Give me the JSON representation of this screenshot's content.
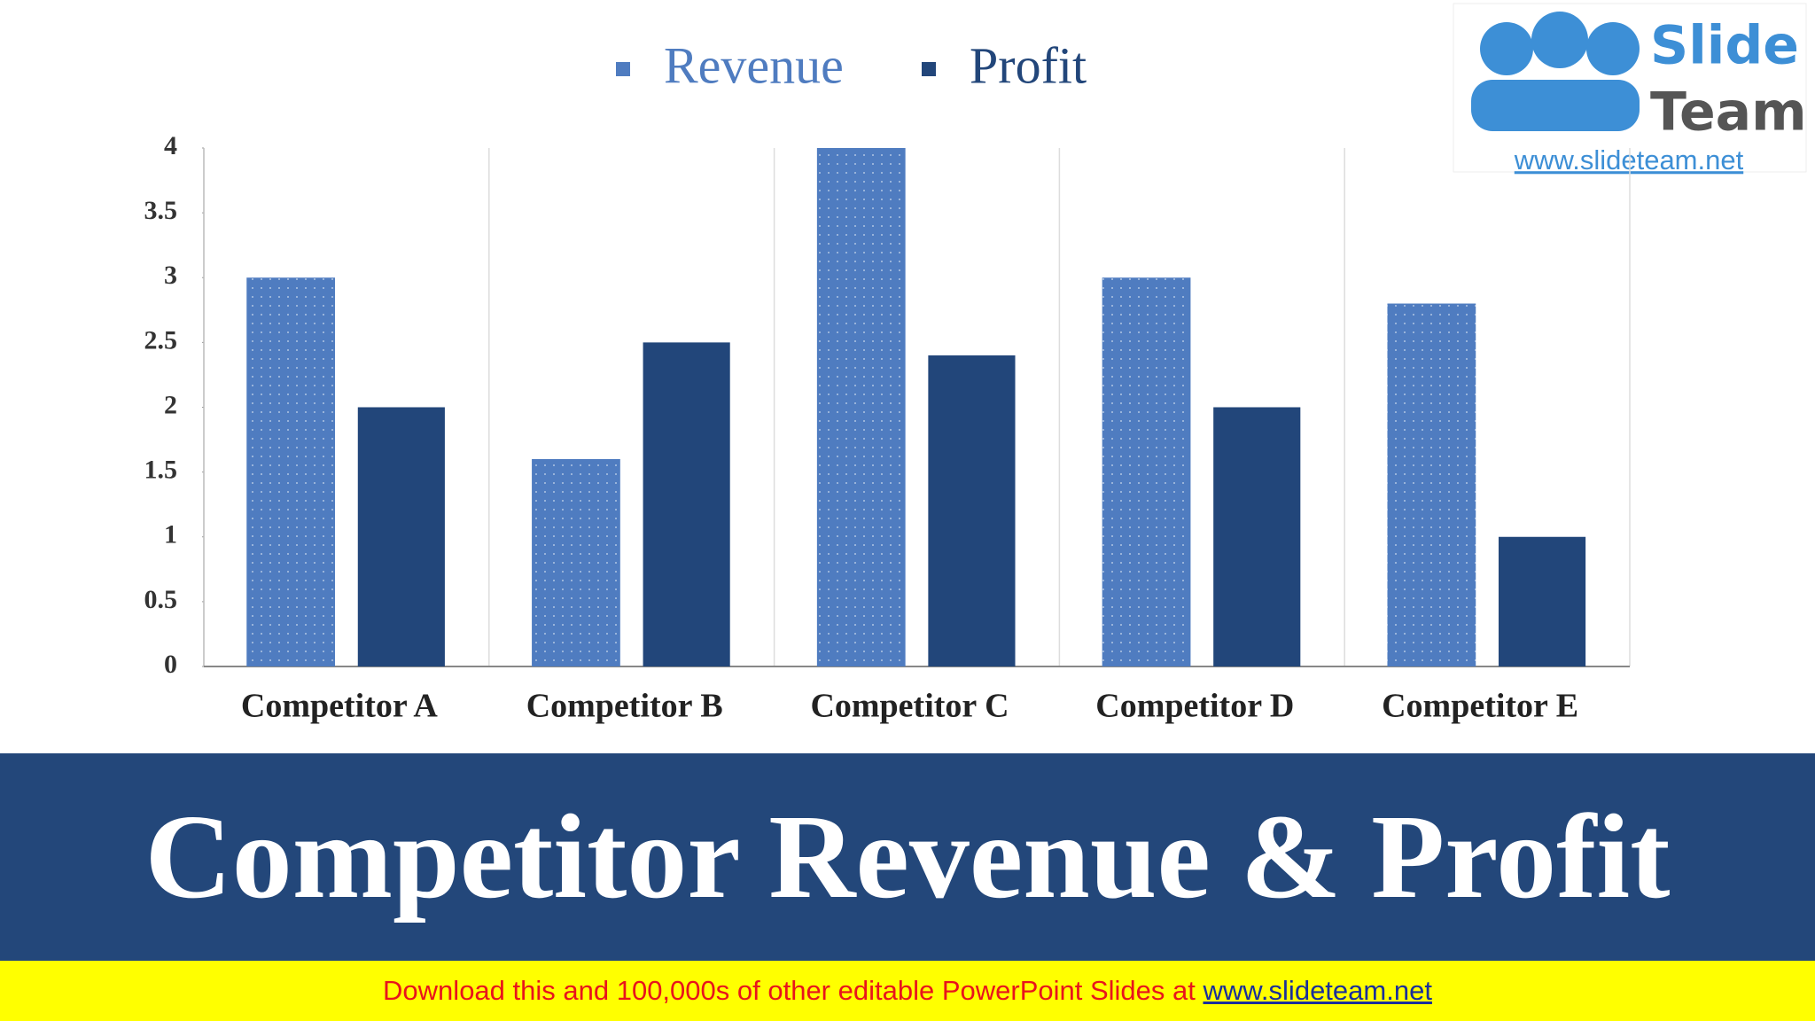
{
  "chart_data": {
    "type": "bar",
    "title": "Competitor Revenue & Profit",
    "categories": [
      "Competitor A",
      "Competitor B",
      "Competitor C",
      "Competitor D",
      "Competitor E"
    ],
    "series": [
      {
        "name": "Revenue",
        "color": "#4f7cc0",
        "values": [
          3,
          1.6,
          4,
          3,
          2.8
        ]
      },
      {
        "name": "Profit",
        "color": "#22467a",
        "values": [
          2,
          2.5,
          2.4,
          2,
          1
        ]
      }
    ],
    "ylim": [
      0,
      4
    ],
    "yticks": [
      0,
      0.5,
      1,
      1.5,
      2,
      2.5,
      3,
      3.5,
      4
    ],
    "legend": "top"
  },
  "logo": {
    "line1": "Slide",
    "line2": "Team",
    "url": "www.slideteam.net"
  },
  "footer": {
    "text": "Download this and 100,000s of other editable PowerPoint Slides at ",
    "link": "www.slideteam.net"
  }
}
